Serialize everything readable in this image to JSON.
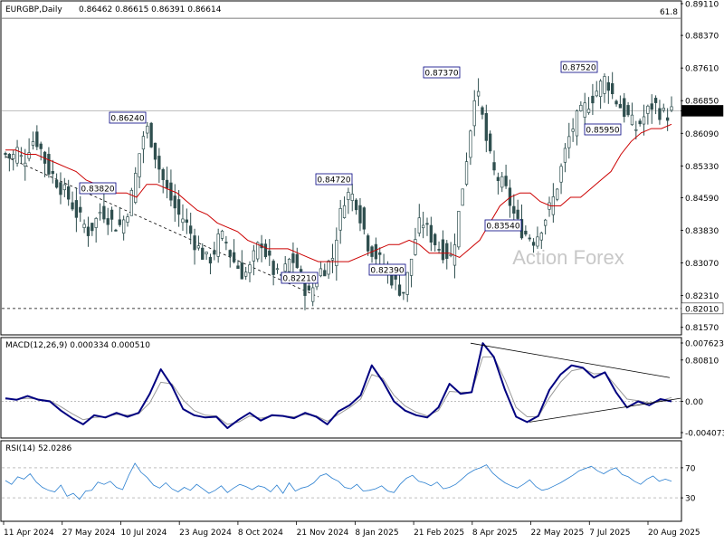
{
  "header": {
    "symbol": "EURGBP,Daily",
    "ohlc": "0.86462 0.86615 0.86391 0.86614"
  },
  "watermark": "Action Forex",
  "colors": {
    "candle": "#2f4f4f",
    "ma": "#cc0000",
    "macd": "#000080",
    "signal": "#999999",
    "rsi": "#2a7fd0",
    "label_border": "#000080"
  },
  "chart_data": [
    {
      "type": "candlestick",
      "title": "EURGBP,Daily",
      "ylim": [
        0.8148,
        0.8911
      ],
      "y_ticks": [
        "0.89110",
        "0.88370",
        "0.87610",
        "0.86850",
        "0.86090",
        "0.85330",
        "0.84590",
        "0.83830",
        "0.83070",
        "0.82310",
        "0.81570",
        "0.80810"
      ],
      "current_price": "0.86614",
      "fib_label": "61.8",
      "fib_level": 0.8877,
      "support_level": "0.82010",
      "support_value": 0.8201,
      "annotations": [
        {
          "text": "0.86240",
          "value": 0.8624
        },
        {
          "text": "0.83820",
          "value": 0.8382
        },
        {
          "text": "0.84720",
          "value": 0.8472
        },
        {
          "text": "0.82210",
          "value": 0.8221
        },
        {
          "text": "0.82390",
          "value": 0.8239
        },
        {
          "text": "0.87370",
          "value": 0.8737
        },
        {
          "text": "0.83540",
          "value": 0.8354
        },
        {
          "text": "0.87520",
          "value": 0.8752
        },
        {
          "text": "0.85950",
          "value": 0.8595
        }
      ],
      "close_path": [
        0.856,
        0.855,
        0.857,
        0.854,
        0.858,
        0.86,
        0.857,
        0.853,
        0.851,
        0.849,
        0.847,
        0.845,
        0.842,
        0.84,
        0.838,
        0.84,
        0.843,
        0.842,
        0.84,
        0.839,
        0.841,
        0.845,
        0.852,
        0.86,
        0.862,
        0.857,
        0.852,
        0.848,
        0.845,
        0.842,
        0.841,
        0.838,
        0.835,
        0.833,
        0.831,
        0.833,
        0.837,
        0.836,
        0.832,
        0.83,
        0.828,
        0.829,
        0.833,
        0.836,
        0.832,
        0.829,
        0.827,
        0.829,
        0.832,
        0.83,
        0.826,
        0.823,
        0.826,
        0.829,
        0.83,
        0.832,
        0.84,
        0.846,
        0.847,
        0.845,
        0.84,
        0.835,
        0.833,
        0.831,
        0.829,
        0.827,
        0.825,
        0.824,
        0.83,
        0.837,
        0.841,
        0.838,
        0.836,
        0.834,
        0.833,
        0.832,
        0.84,
        0.85,
        0.86,
        0.872,
        0.866,
        0.858,
        0.852,
        0.85,
        0.848,
        0.844,
        0.84,
        0.838,
        0.837,
        0.836,
        0.839,
        0.842,
        0.845,
        0.85,
        0.856,
        0.861,
        0.864,
        0.866,
        0.868,
        0.87,
        0.872,
        0.874,
        0.87,
        0.868,
        0.866,
        0.864,
        0.862,
        0.864,
        0.866,
        0.868,
        0.866,
        0.865,
        0.866
      ],
      "ma_path": [
        0.857,
        0.857,
        0.856,
        0.856,
        0.855,
        0.854,
        0.853,
        0.852,
        0.85,
        0.849,
        0.848,
        0.847,
        0.847,
        0.846,
        0.849,
        0.849,
        0.848,
        0.847,
        0.845,
        0.843,
        0.842,
        0.84,
        0.839,
        0.838,
        0.836,
        0.835,
        0.834,
        0.834,
        0.834,
        0.833,
        0.832,
        0.831,
        0.831,
        0.831,
        0.831,
        0.832,
        0.833,
        0.834,
        0.835,
        0.835,
        0.836,
        0.835,
        0.833,
        0.833,
        0.833,
        0.832,
        0.834,
        0.836,
        0.84,
        0.844,
        0.846,
        0.847,
        0.847,
        0.845,
        0.844,
        0.844,
        0.846,
        0.846,
        0.848,
        0.85,
        0.852,
        0.856,
        0.859,
        0.861,
        0.862,
        0.862,
        0.863
      ],
      "ma_period": "MA"
    },
    {
      "type": "line",
      "title": "MACD(12,26,9) 0.000334 0.000510",
      "ylim": [
        -0.004073,
        0.007623
      ],
      "y_ticks": [
        "0.007623",
        "0.00",
        "-0.004073"
      ],
      "macd": [
        0.0004,
        0.0002,
        0.0007,
        0.0002,
        0.0,
        -0.0012,
        -0.0022,
        -0.003,
        -0.0018,
        -0.0021,
        -0.0015,
        -0.002,
        -0.0015,
        0.001,
        0.0042,
        0.002,
        -0.001,
        -0.0018,
        -0.0021,
        -0.002,
        -0.0035,
        -0.0024,
        -0.0015,
        -0.0025,
        -0.0018,
        -0.0019,
        -0.0022,
        -0.0015,
        -0.002,
        -0.003,
        -0.0013,
        -0.0005,
        0.0008,
        0.0047,
        0.0026,
        0.0,
        -0.0012,
        -0.0018,
        -0.0021,
        -0.0008,
        0.0023,
        0.001,
        0.0012,
        0.0076,
        0.0058,
        0.0015,
        -0.002,
        -0.0027,
        -0.0019,
        0.0015,
        0.0035,
        0.0047,
        0.0044,
        0.0031,
        0.0038,
        0.0012,
        -0.0008,
        0.0,
        -0.0005,
        0.0003,
        0.0
      ],
      "signal": [
        0.0003,
        0.0003,
        0.0004,
        0.0003,
        0.0001,
        -0.0007,
        -0.0016,
        -0.0024,
        -0.0021,
        -0.002,
        -0.0017,
        -0.0018,
        -0.0016,
        -0.0002,
        0.0025,
        0.0023,
        0.0002,
        -0.0012,
        -0.0018,
        -0.0019,
        -0.003,
        -0.0027,
        -0.0019,
        -0.0022,
        -0.0019,
        -0.0019,
        -0.002,
        -0.0017,
        -0.0019,
        -0.0026,
        -0.0017,
        -0.0008,
        0.0003,
        0.0035,
        0.003,
        0.0008,
        -0.0006,
        -0.0014,
        -0.0019,
        -0.0012,
        0.0013,
        0.0012,
        0.0012,
        0.0058,
        0.0058,
        0.0028,
        -0.0008,
        -0.002,
        -0.002,
        0.0005,
        0.0025,
        0.004,
        0.0043,
        0.0036,
        0.0037,
        0.002,
        0.0003,
        0.0001,
        -0.0002,
        0.0001,
        0.0005
      ]
    },
    {
      "type": "line",
      "title": "RSI(14) 52.0286",
      "ylim": [
        0,
        100
      ],
      "y_ticks": [
        "70",
        "30"
      ],
      "levels": [
        70,
        30
      ],
      "values": [
        53,
        48,
        58,
        55,
        62,
        51,
        44,
        40,
        38,
        47,
        32,
        36,
        28,
        39,
        40,
        51,
        48,
        52,
        44,
        41,
        60,
        76,
        64,
        57,
        47,
        43,
        50,
        42,
        38,
        44,
        40,
        48,
        42,
        36,
        40,
        46,
        37,
        43,
        48,
        45,
        41,
        46,
        44,
        38,
        47,
        36,
        50,
        39,
        43,
        45,
        50,
        59,
        62,
        56,
        52,
        44,
        42,
        48,
        39,
        40,
        42,
        46,
        39,
        37,
        48,
        56,
        60,
        52,
        50,
        46,
        51,
        42,
        44,
        48,
        55,
        62,
        67,
        70,
        74,
        63,
        56,
        50,
        46,
        43,
        48,
        54,
        45,
        40,
        42,
        46,
        50,
        55,
        60,
        66,
        69,
        72,
        66,
        62,
        67,
        70,
        61,
        58,
        52,
        48,
        55,
        59,
        52,
        55,
        52
      ]
    }
  ],
  "x_axis": {
    "labels": [
      "11 Apr 2024",
      "27 May 2024",
      "10 Jul 2024",
      "23 Aug 2024",
      "8 Oct 2024",
      "21 Nov 2024",
      "8 Jan 2025",
      "21 Feb 2025",
      "8 Apr 2025",
      "22 May 2025",
      "7 Jul 2025",
      "20 Aug 2025"
    ]
  }
}
